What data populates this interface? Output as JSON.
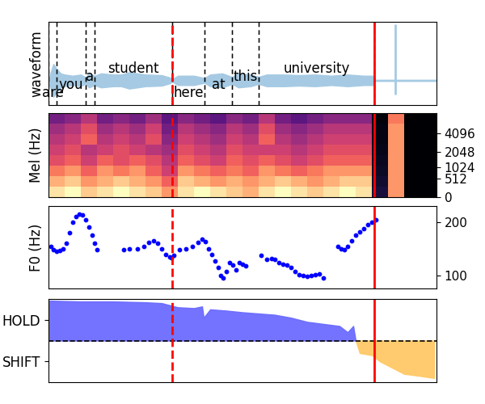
{
  "vertical_lines": [
    {
      "x": 153,
      "line_style": "dashed",
      "color": "red"
    },
    {
      "x": 403,
      "line_style": "solid",
      "color": "red"
    }
  ],
  "chart_data": [
    {
      "type": "waveform",
      "ylabel": "waveform",
      "xlim": [
        0,
        480
      ],
      "ylim": [
        -0.42,
        1.0
      ],
      "tick_labels": false,
      "color": "#a6cae3",
      "x": [
        0,
        3,
        6,
        10,
        15,
        20,
        30,
        40,
        46,
        50,
        57,
        65,
        80,
        90,
        100,
        120,
        140,
        150,
        153,
        160,
        180,
        193,
        200,
        215,
        227,
        235,
        250,
        260,
        270,
        290,
        310,
        330,
        350,
        370,
        390,
        402,
        404,
        480
      ],
      "amplitude": [
        0.02,
        0.15,
        0.28,
        0.2,
        0.12,
        0.1,
        0.08,
        0.1,
        0.05,
        0.12,
        0.08,
        0.12,
        0.1,
        0.1,
        0.14,
        0.1,
        0.09,
        0.05,
        0.02,
        0.08,
        0.08,
        0.04,
        0.1,
        0.12,
        0.06,
        0.12,
        0.1,
        0.06,
        0.1,
        0.1,
        0.09,
        0.1,
        0.08,
        0.1,
        0.08,
        0.08,
        0.01,
        0.01
      ],
      "spike": {
        "x": 429,
        "top": 0.96,
        "bottom": -0.24
      },
      "words": [
        {
          "text": "are",
          "start": 0,
          "end": 10
        },
        {
          "text": "you",
          "start": 10,
          "end": 46
        },
        {
          "text": "a",
          "start": 46,
          "end": 57
        },
        {
          "text": "student",
          "start": 57,
          "end": 153
        },
        {
          "text": "here",
          "start": 153,
          "end": 193
        },
        {
          "text": "at",
          "start": 193,
          "end": 227
        },
        {
          "text": "this",
          "start": 227,
          "end": 260
        },
        {
          "text": "university",
          "start": 260,
          "end": 403
        }
      ]
    },
    {
      "type": "heatmap",
      "ylabel": "Mel (Hz)",
      "xlim": [
        0,
        480
      ],
      "ylim": [
        0,
        8000
      ],
      "yticks": [
        0,
        512,
        1024,
        2048,
        4096
      ],
      "tick_labels": "y",
      "cells": [
        [
          0.85,
          0.9,
          0.8,
          0.85,
          0.9,
          0.85,
          0.8,
          0.7,
          0.85,
          0.9,
          0.85,
          0.8,
          0.75,
          0.85,
          0.9,
          0.85,
          0.8,
          0.85,
          0.9,
          0.85,
          0.1,
          0.7,
          0.0,
          0.0
        ],
        [
          0.75,
          0.8,
          0.7,
          0.75,
          0.8,
          0.75,
          0.7,
          0.6,
          0.8,
          0.75,
          0.7,
          0.75,
          0.7,
          0.75,
          0.8,
          0.75,
          0.7,
          0.75,
          0.8,
          0.8,
          0.08,
          0.7,
          0.0,
          0.0
        ],
        [
          0.65,
          0.7,
          0.6,
          0.7,
          0.65,
          0.7,
          0.6,
          0.5,
          0.7,
          0.65,
          0.6,
          0.65,
          0.6,
          0.7,
          0.65,
          0.6,
          0.65,
          0.7,
          0.7,
          0.7,
          0.06,
          0.7,
          0.0,
          0.0
        ],
        [
          0.55,
          0.6,
          0.5,
          0.6,
          0.55,
          0.6,
          0.55,
          0.45,
          0.6,
          0.55,
          0.5,
          0.6,
          0.55,
          0.6,
          0.55,
          0.5,
          0.55,
          0.6,
          0.6,
          0.6,
          0.05,
          0.7,
          0.0,
          0.0
        ],
        [
          0.5,
          0.55,
          0.45,
          0.5,
          0.55,
          0.5,
          0.45,
          0.4,
          0.55,
          0.5,
          0.45,
          0.55,
          0.5,
          0.5,
          0.5,
          0.45,
          0.5,
          0.55,
          0.55,
          0.55,
          0.04,
          0.7,
          0.0,
          0.0
        ],
        [
          0.45,
          0.5,
          0.6,
          0.45,
          0.5,
          0.45,
          0.55,
          0.35,
          0.5,
          0.45,
          0.4,
          0.5,
          0.45,
          0.6,
          0.45,
          0.4,
          0.45,
          0.5,
          0.5,
          0.5,
          0.03,
          0.7,
          0.0,
          0.0
        ],
        [
          0.4,
          0.45,
          0.55,
          0.4,
          0.45,
          0.4,
          0.5,
          0.3,
          0.45,
          0.4,
          0.35,
          0.45,
          0.4,
          0.55,
          0.4,
          0.35,
          0.4,
          0.45,
          0.45,
          0.45,
          0.03,
          0.7,
          0.0,
          0.0
        ],
        [
          0.3,
          0.35,
          0.45,
          0.3,
          0.35,
          0.3,
          0.4,
          0.25,
          0.35,
          0.3,
          0.25,
          0.35,
          0.3,
          0.45,
          0.3,
          0.25,
          0.3,
          0.35,
          0.35,
          0.35,
          0.02,
          0.65,
          0.0,
          0.0
        ]
      ]
    },
    {
      "type": "scatter",
      "ylabel": "F0 (Hz)",
      "xlim": [
        0,
        480
      ],
      "ylim": [
        76,
        230
      ],
      "yticks": [
        100,
        200
      ],
      "tick_labels": "y",
      "color": "blue",
      "marker": "o",
      "x": [
        3,
        6,
        10,
        14,
        18,
        22,
        26,
        30,
        34,
        38,
        42,
        46,
        50,
        54,
        57,
        60,
        93,
        100,
        110,
        118,
        124,
        130,
        135,
        140,
        145,
        150,
        152,
        155,
        162,
        170,
        178,
        185,
        190,
        194,
        198,
        202,
        206,
        210,
        213,
        216,
        220,
        224,
        228,
        232,
        236,
        240,
        244,
        263,
        270,
        276,
        280,
        285,
        290,
        295,
        300,
        305,
        310,
        315,
        320,
        325,
        330,
        335,
        340,
        358,
        362,
        366,
        370,
        375,
        380,
        385,
        390,
        395,
        400,
        405
      ],
      "values": [
        155,
        148,
        146,
        147,
        150,
        160,
        180,
        200,
        210,
        215,
        213,
        205,
        190,
        175,
        160,
        148,
        148,
        150,
        150,
        155,
        162,
        165,
        160,
        150,
        140,
        135,
        133,
        138,
        148,
        150,
        155,
        162,
        168,
        163,
        150,
        140,
        128,
        115,
        100,
        95,
        108,
        125,
        120,
        110,
        125,
        122,
        118,
        138,
        130,
        132,
        130,
        125,
        122,
        120,
        115,
        108,
        102,
        100,
        98,
        100,
        102,
        103,
        95,
        155,
        150,
        148,
        155,
        165,
        175,
        182,
        188,
        195,
        200,
        205
      ]
    },
    {
      "type": "area",
      "xlim": [
        0,
        480
      ],
      "ylim": [
        -1,
        1
      ],
      "yticks": [
        {
          "value": 0.5,
          "label": "HOLD"
        },
        {
          "value": -0.5,
          "label": "SHIFT"
        }
      ],
      "tick_labels": "y",
      "colors": [
        "#6b6bff",
        "#ffc966"
      ],
      "reference_line": 0,
      "x": [
        0,
        40,
        80,
        120,
        140,
        150,
        160,
        180,
        190,
        192,
        200,
        220,
        240,
        260,
        280,
        300,
        320,
        340,
        360,
        370,
        377,
        380,
        385,
        400,
        410,
        420,
        440,
        460,
        477
      ],
      "values": [
        0.96,
        0.94,
        0.94,
        0.92,
        0.9,
        0.85,
        0.8,
        0.78,
        0.82,
        0.55,
        0.75,
        0.72,
        0.68,
        0.65,
        0.62,
        0.55,
        0.45,
        0.4,
        0.35,
        0.2,
        0.35,
        0.0,
        -0.3,
        -0.35,
        -0.5,
        -0.6,
        -0.8,
        -0.85,
        -0.9
      ]
    }
  ]
}
